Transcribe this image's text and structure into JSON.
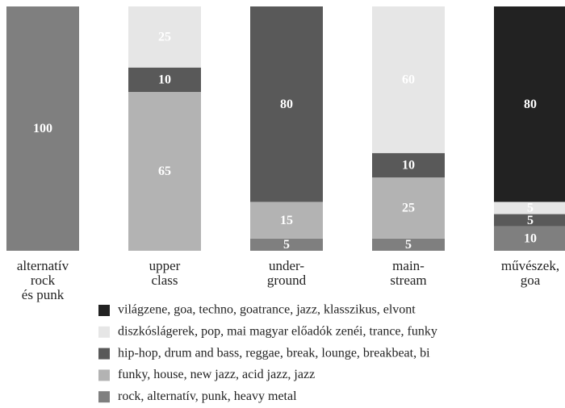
{
  "chart_data": {
    "type": "stacked_bar",
    "categories": [
      [
        "alternatív",
        "rock",
        "és punk"
      ],
      [
        "upper",
        "class"
      ],
      [
        "under-",
        "ground"
      ],
      [
        "main-",
        "stream"
      ],
      [
        "művészek,",
        "goa"
      ]
    ],
    "series": [
      {
        "name": "rock, alternatív, punk, heavy metal",
        "color": "#7f7f7f",
        "values": [
          100,
          0,
          5,
          5,
          10
        ]
      },
      {
        "name": "funky, house, new jazz, acid jazz, jazz",
        "color": "#b3b3b3",
        "values": [
          0,
          65,
          15,
          25,
          0
        ]
      },
      {
        "name": "hip-hop, drum and bass, reggae, break, lounge, breakbeat, bi",
        "color": "#595959",
        "values": [
          0,
          10,
          80,
          10,
          5
        ]
      },
      {
        "name": "diszkóslágerek, pop, mai magyar előadók zenéi, trance, funky",
        "color": "#e6e6e6",
        "values": [
          0,
          25,
          0,
          60,
          5
        ]
      },
      {
        "name": "világzene, goa, techno, goatrance, jazz, klasszikus, elvont",
        "color": "#222222",
        "values": [
          0,
          0,
          0,
          0,
          80
        ]
      }
    ]
  }
}
